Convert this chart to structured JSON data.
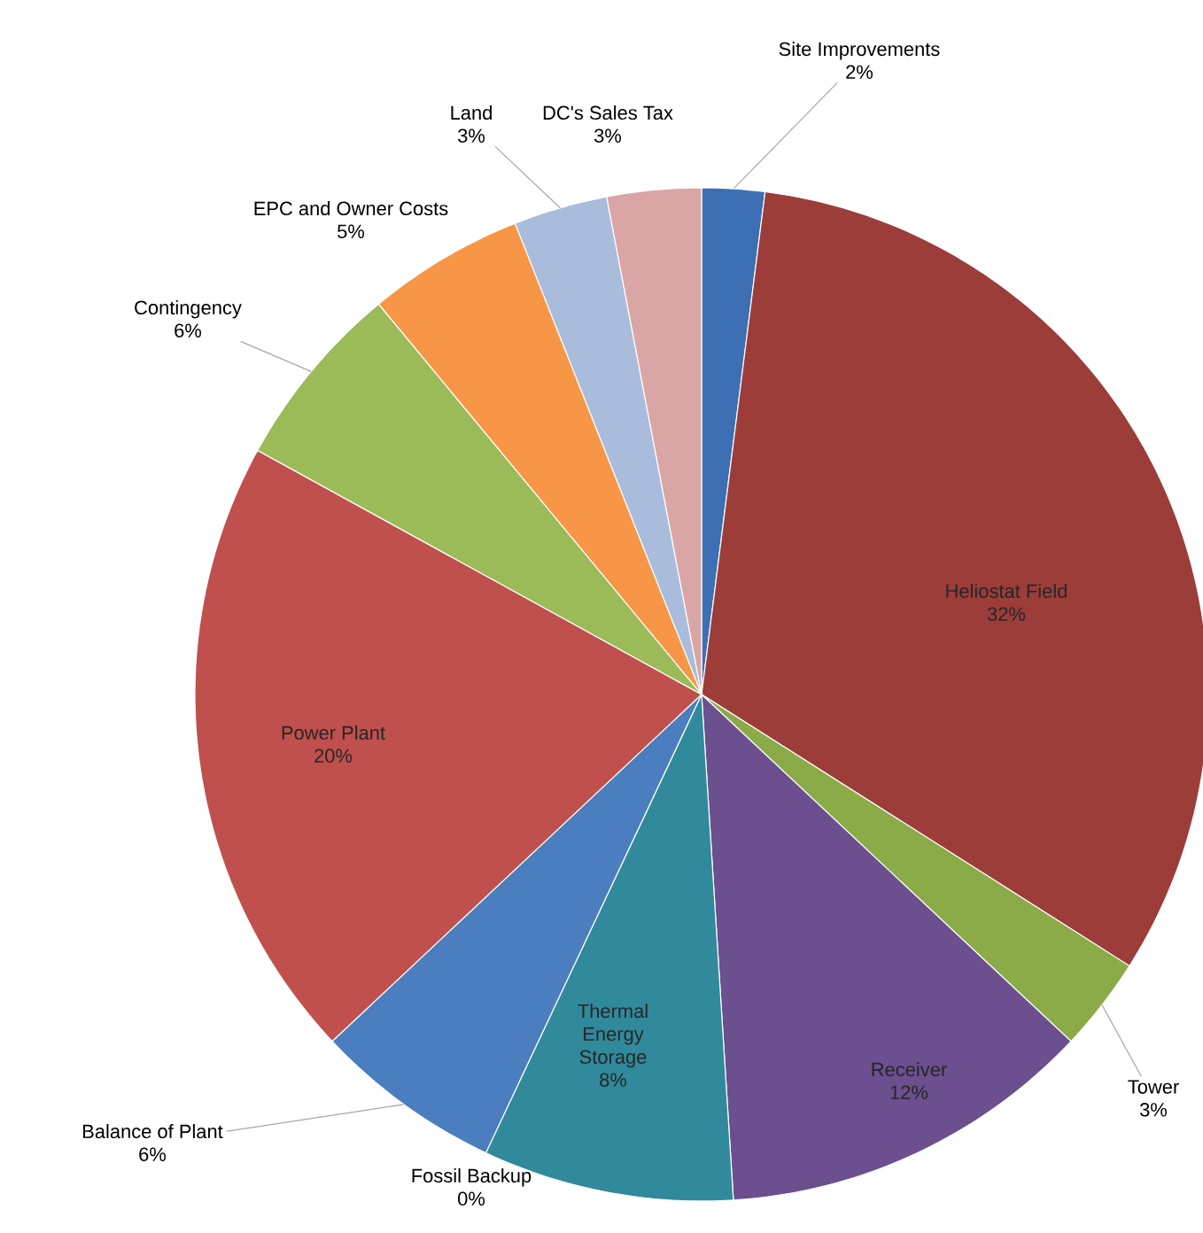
{
  "chart_data": {
    "type": "pie",
    "categories": [
      "Site Improvements",
      "Heliostat Field",
      "Tower",
      "Receiver",
      "Thermal Energy Storage",
      "Fossil Backup",
      "Balance of Plant",
      "Power Plant",
      "Contingency",
      "EPC and Owner Costs",
      "Land",
      "DC's Sales Tax"
    ],
    "values": [
      2,
      32,
      3,
      12,
      8,
      0,
      6,
      20,
      6,
      5,
      3,
      3
    ],
    "value_labels": [
      "2%",
      "32%",
      "3%",
      "12%",
      "8%",
      "0%",
      "6%",
      "20%",
      "6%",
      "5%",
      "3%",
      "3%"
    ],
    "colors": [
      "#3c6fb4",
      "#9c3d3a",
      "#8aab47",
      "#6b4f8e",
      "#31899c",
      "#e08a3c",
      "#4a7ebf",
      "#c0504d",
      "#9bbb59",
      "#f79646",
      "#a9bcdc",
      "#d9a5a5"
    ]
  }
}
